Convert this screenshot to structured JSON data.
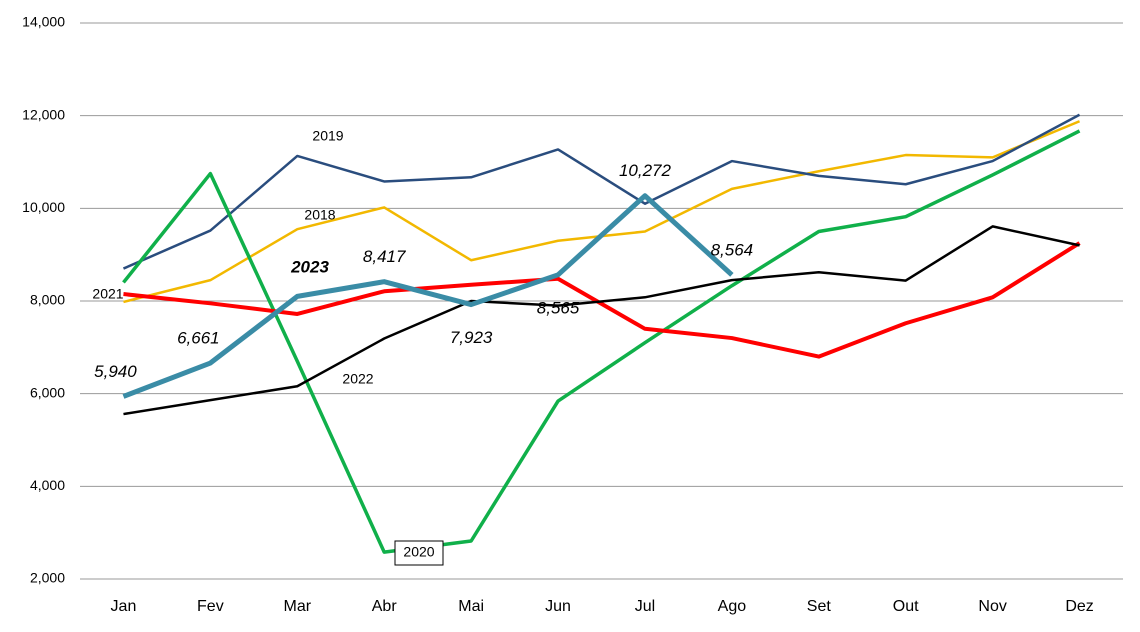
{
  "chart_data": {
    "type": "line",
    "categories": [
      "Jan",
      "Fev",
      "Mar",
      "Abr",
      "Mai",
      "Jun",
      "Jul",
      "Ago",
      "Set",
      "Out",
      "Nov",
      "Dez"
    ],
    "ylim": [
      2000,
      14000
    ],
    "yticks": [
      {
        "value": 2000,
        "label": "2,000"
      },
      {
        "value": 4000,
        "label": "4,000"
      },
      {
        "value": 6000,
        "label": "6,000"
      },
      {
        "value": 8000,
        "label": "8,000"
      },
      {
        "value": 10000,
        "label": "10,000"
      },
      {
        "value": 12000,
        "label": "12,000"
      },
      {
        "value": 14000,
        "label": "14,000"
      }
    ],
    "grid": true,
    "series": [
      {
        "name": "2018",
        "color": "#f2b800",
        "width": 2.5,
        "values": [
          7980,
          8450,
          9550,
          10020,
          8880,
          9300,
          9500,
          10420,
          10800,
          11150,
          11100,
          11880
        ]
      },
      {
        "name": "2019",
        "color": "#2a4d7e",
        "width": 2.5,
        "values": [
          8700,
          9520,
          11130,
          10580,
          10670,
          11270,
          10100,
          11020,
          10700,
          10520,
          11020,
          12020
        ]
      },
      {
        "name": "2020",
        "color": "#10b04a",
        "width": 3.5,
        "values": [
          8400,
          10750,
          6700,
          2580,
          2820,
          5840,
          7100,
          8330,
          9500,
          9820,
          10720,
          11670
        ]
      },
      {
        "name": "2021",
        "color": "#ff0000",
        "width": 4,
        "values": [
          8150,
          7950,
          7720,
          8210,
          8350,
          8480,
          7400,
          7200,
          6800,
          7520,
          8080,
          9250
        ]
      },
      {
        "name": "2022",
        "color": "#000000",
        "width": 2.5,
        "values": [
          5560,
          5860,
          6160,
          7190,
          8000,
          7900,
          8080,
          8450,
          8620,
          8440,
          9610,
          9200
        ]
      },
      {
        "name": "2023",
        "color": "#3a8ca6",
        "width": 5,
        "values": [
          5940,
          6661,
          8100,
          8417,
          7923,
          8565,
          10272,
          8564,
          null,
          null,
          null,
          null
        ],
        "value_labels": [
          "5,940",
          "6,661",
          null,
          "8,417",
          "7,923",
          "8,565",
          "10,272",
          "8,564",
          null,
          null,
          null,
          null
        ]
      }
    ]
  }
}
